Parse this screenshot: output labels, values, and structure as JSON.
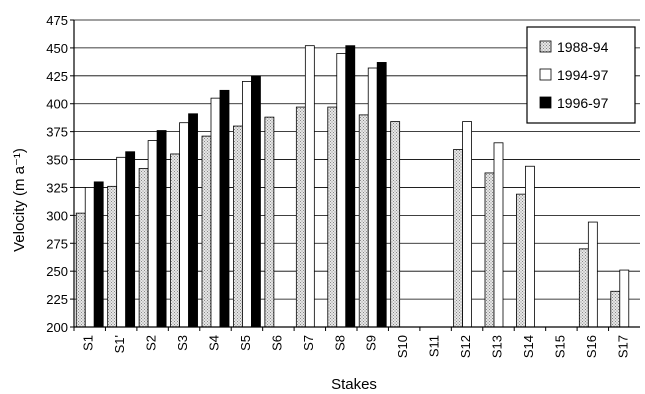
{
  "chart_data": {
    "type": "bar",
    "title": "",
    "xlabel": "Stakes",
    "ylabel": "Velocity (m a⁻¹)",
    "ylim": [
      200,
      475
    ],
    "yticks": [
      200,
      225,
      250,
      275,
      300,
      325,
      350,
      375,
      400,
      425,
      450,
      475
    ],
    "grid": "horizontal",
    "legend_position": "top-right",
    "categories": [
      "S1",
      "S1'",
      "S2",
      "S3",
      "S4",
      "S5",
      "S6",
      "S7",
      "S8",
      "S9",
      "S10",
      "S11",
      "S12",
      "S13",
      "S14",
      "S15",
      "S16",
      "S17"
    ],
    "series": [
      {
        "name": "1988-94",
        "color": "#d4d4d4",
        "values": [
          302,
          326,
          342,
          355,
          371,
          380,
          388,
          397,
          397,
          390,
          384,
          null,
          359,
          338,
          319,
          null,
          270,
          232
        ]
      },
      {
        "name": "1994-97",
        "color": "#ffffff",
        "values": [
          325,
          352,
          367,
          383,
          405,
          420,
          null,
          452,
          445,
          432,
          null,
          null,
          384,
          365,
          344,
          null,
          294,
          251
        ]
      },
      {
        "name": "1996-97",
        "color": "#000000",
        "values": [
          330,
          357,
          376,
          391,
          412,
          425,
          null,
          null,
          452,
          437,
          null,
          null,
          null,
          null,
          null,
          null,
          null,
          null
        ]
      }
    ]
  }
}
